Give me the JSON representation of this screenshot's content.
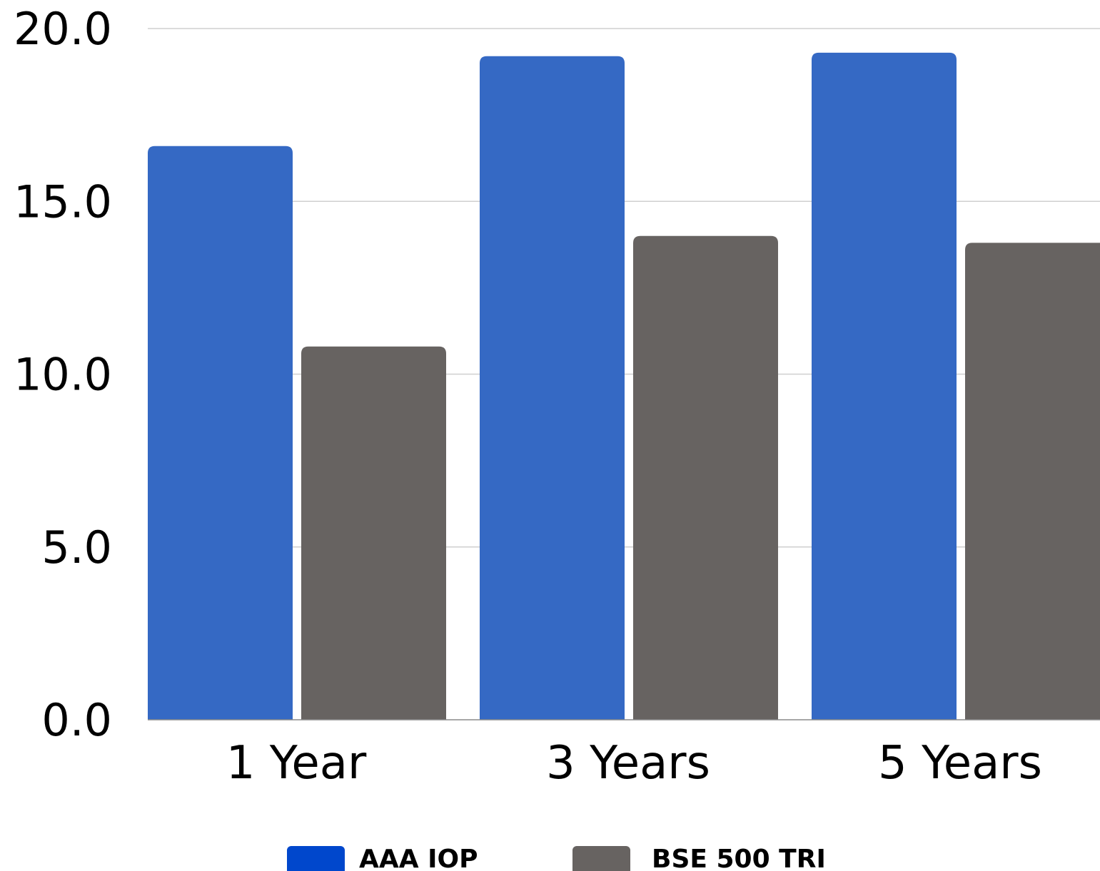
{
  "chart_data": {
    "type": "bar",
    "title": "",
    "xlabel": "",
    "ylabel": "",
    "categories": [
      "1 Year",
      "3 Years",
      "5 Years"
    ],
    "series": [
      {
        "name": "AAA IOP",
        "values": [
          16.6,
          19.2,
          19.3
        ],
        "color": "#3569c4"
      },
      {
        "name": "BSE 500 TRI",
        "values": [
          10.8,
          14.0,
          13.8
        ],
        "color": "#676361"
      }
    ],
    "ylim": [
      0,
      20
    ],
    "yticks": [
      "0.0",
      "5.0",
      "10.0",
      "15.0",
      "20.0"
    ],
    "grid": true,
    "legend": {
      "position": "bottom",
      "items": [
        {
          "label": "AAA IOP",
          "color": "#0047cc"
        },
        {
          "label": "BSE 500 TRI",
          "color": "#676361"
        }
      ]
    }
  }
}
